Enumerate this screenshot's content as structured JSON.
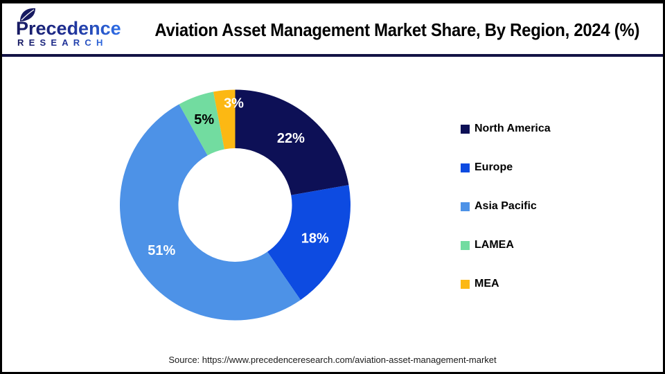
{
  "header": {
    "logo": {
      "name": "Precedence",
      "subtitle": "RESEARCH",
      "color_dark": "#171a61",
      "color_light": "#2f6fe8"
    },
    "title": "Aviation Asset Management Market Share, By Region, 2024 (%)"
  },
  "chart_data": {
    "type": "pie",
    "subtype": "donut",
    "title": "Aviation Asset Management Market Share, By Region, 2024 (%)",
    "unit": "%",
    "direction": "clockwise",
    "start_angle_deg": 0,
    "legend_position": "right",
    "categories": [
      "North America",
      "Europe",
      "Asia Pacific",
      "LAMEA",
      "MEA"
    ],
    "values": [
      22,
      18,
      51,
      5,
      3
    ],
    "slices": [
      {
        "label": "North America",
        "value": 22,
        "color": "#0d1056",
        "label_color": "#ffffff",
        "label_radius": 125,
        "label_dx": 0
      },
      {
        "label": "Europe",
        "value": 18,
        "color": "#0d4be1",
        "label_color": "#ffffff",
        "label_radius": 125,
        "label_dx": 0
      },
      {
        "label": "Asia Pacific",
        "value": 51,
        "color": "#4d92e7",
        "label_color": "#ffffff",
        "label_radius": 125,
        "label_dx": 0
      },
      {
        "label": "LAMEA",
        "value": 5,
        "color": "#72dca0",
        "label_color": "#000000",
        "label_radius": 131,
        "label_dx": 0
      },
      {
        "label": "MEA",
        "value": 3,
        "color": "#fcb813",
        "label_color": "#ffffff",
        "label_radius": 147,
        "label_dx": 12
      }
    ]
  },
  "footer": {
    "source_text": "Source: https://www.precedenceresearch.com/aviation-asset-management-market"
  }
}
